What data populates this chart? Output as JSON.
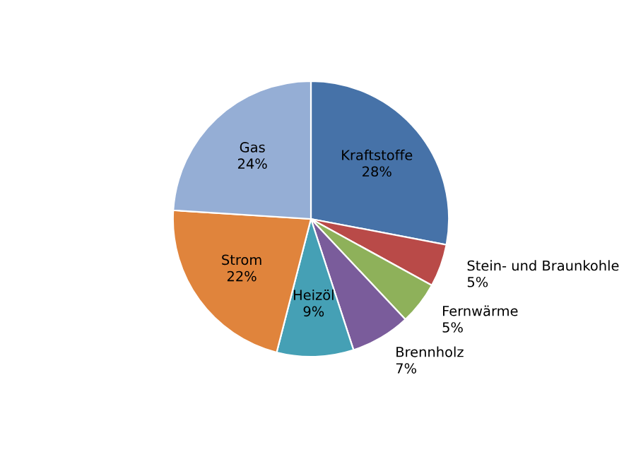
{
  "chart_data": {
    "type": "pie",
    "categories": [
      "Kraftstoffe",
      "Stein- und Braunkohle",
      "Fernwärme",
      "Brennholz",
      "Heizöl",
      "Strom",
      "Gas"
    ],
    "values": [
      28,
      5,
      5,
      7,
      9,
      22,
      24
    ],
    "colors": [
      "#4672a8",
      "#b94a48",
      "#8eb15a",
      "#7a5c9b",
      "#45a0b5",
      "#e0843c",
      "#95aed5"
    ],
    "value_labels": [
      "28%",
      "5%",
      "5%",
      "7%",
      "9%",
      "22%",
      "24%"
    ]
  }
}
